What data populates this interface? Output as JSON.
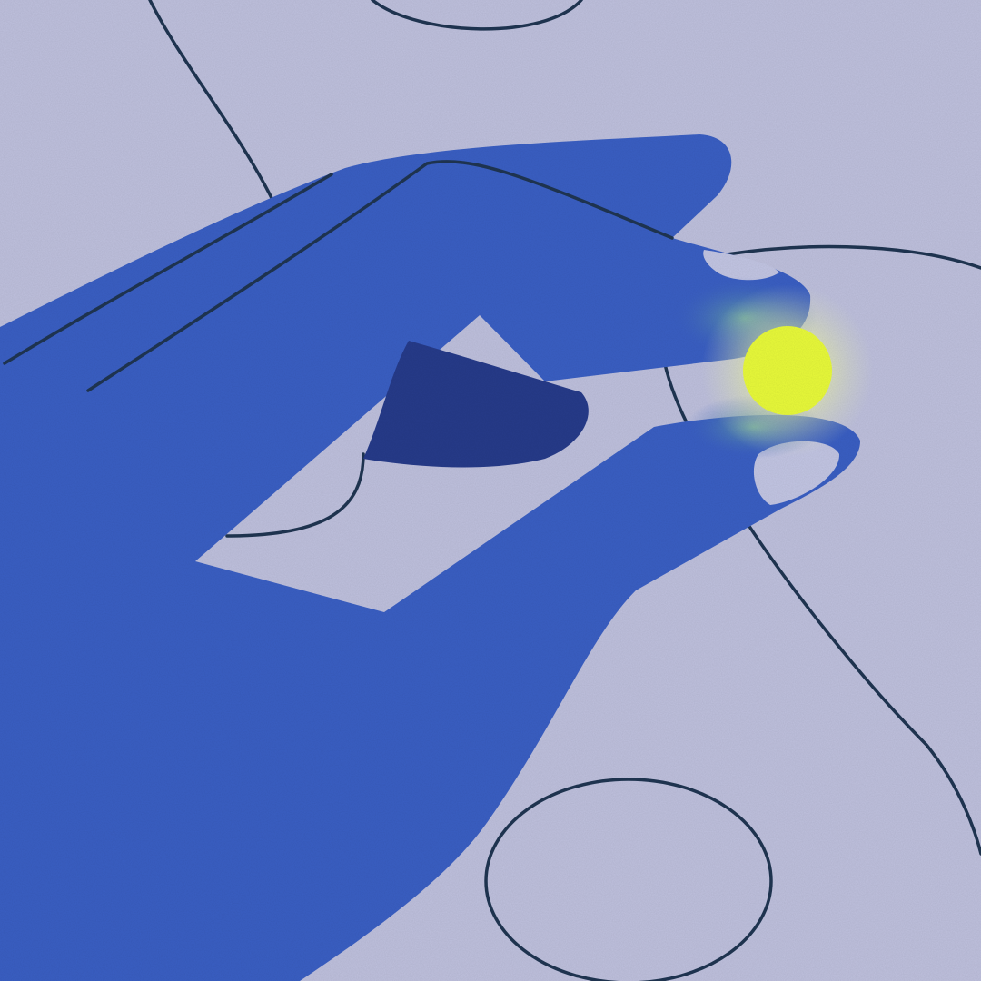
{
  "scene": {
    "subject": "hand-holding-glowing-orb",
    "palette": {
      "background": "#bfc1de",
      "line": "#1f3552",
      "hand": "#3a5fc4",
      "hand_shadow": "#263b8a",
      "nail": "#c3c6e4",
      "orb": "#e9fb3a",
      "glow": "#f4f7a8"
    }
  }
}
